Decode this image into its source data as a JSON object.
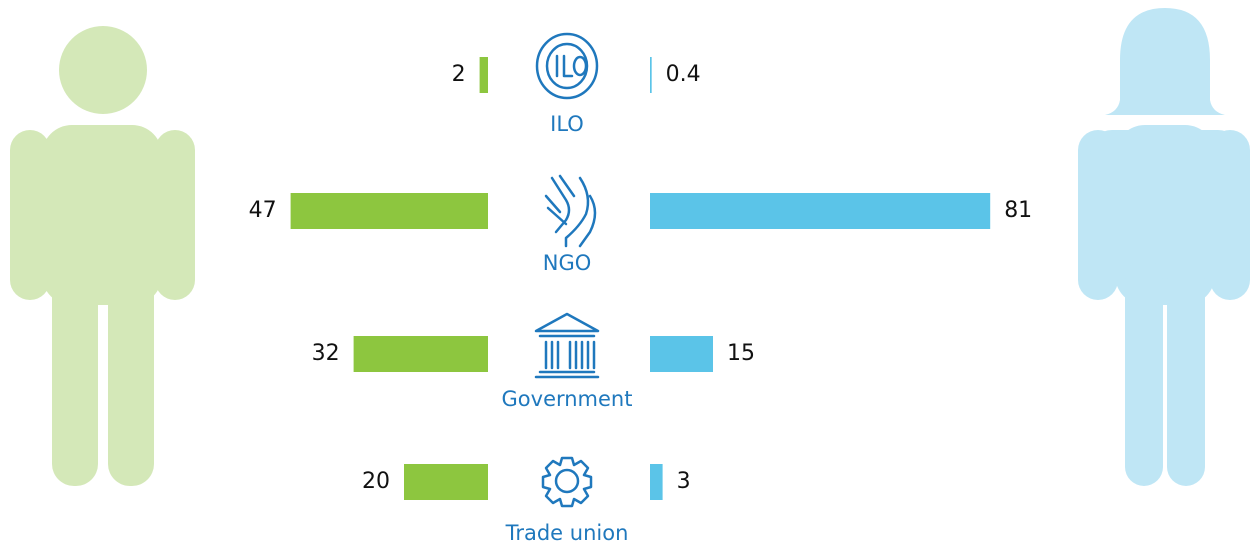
{
  "chart_data": {
    "type": "butterfly",
    "categories": [
      "ILO",
      "NGO",
      "Government",
      "Trade union"
    ],
    "series": [
      {
        "color": "#8dc63f",
        "values": [
          2,
          47,
          32,
          20
        ]
      },
      {
        "color": "#5bc4e8",
        "values": [
          0.4,
          81,
          15,
          3
        ]
      }
    ]
  }
}
